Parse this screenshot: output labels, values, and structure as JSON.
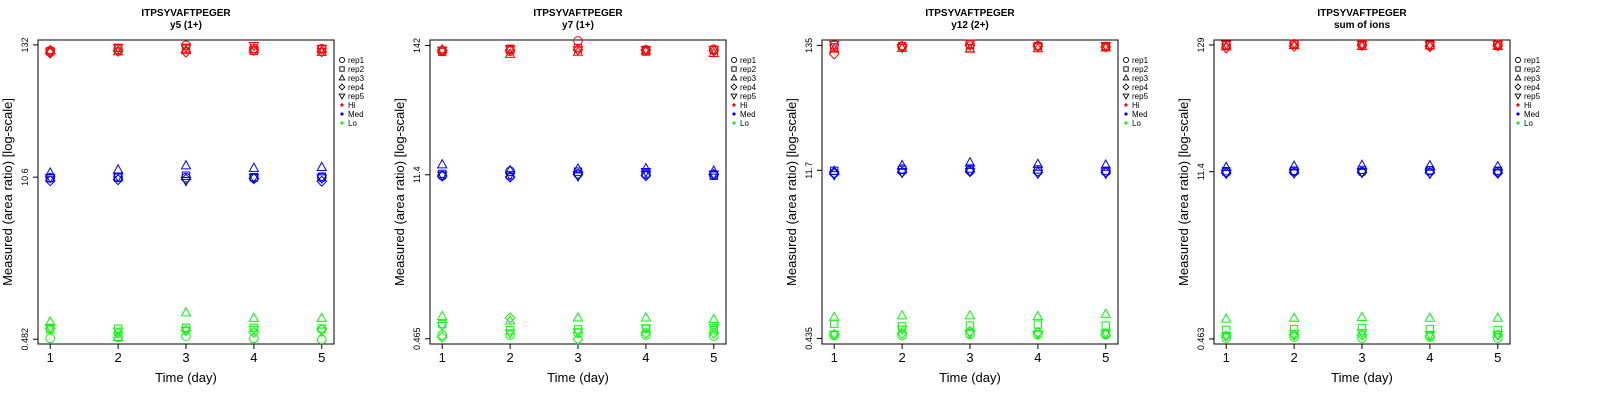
{
  "chart_data": [
    {
      "type": "scatter",
      "title": "ITPSYVAFTPEGER",
      "subtitle": "y5 (1+)",
      "xlabel": "Time (day)",
      "ylabel": "Measured (area ratio) [log-scale]",
      "x": [
        1,
        2,
        3,
        4,
        5
      ],
      "xlim": [
        0.82,
        5.18
      ],
      "ylim": [
        0.44,
        145
      ],
      "yscale": "log",
      "yticks": [
        0.482,
        10.6,
        132
      ],
      "ytick_labels": [
        "0.482",
        "10.6",
        "132"
      ],
      "legend_position": "right",
      "series": [
        {
          "name": "Hi",
          "color": "#ff0000",
          "reps": [
            [
              118,
              117,
              119,
              113,
              115
            ],
            [
              121,
              125,
              116,
              117,
              125
            ],
            [
              131,
              123,
              119,
              115,
              126
            ],
            [
              124,
              118,
              121,
              119,
              130
            ],
            [
              123,
              121,
              115,
              116,
              123
            ]
          ]
        },
        {
          "name": "Med",
          "color": "#0000ff",
          "reps": [
            [
              10.5,
              10.4,
              11.5,
              9.9,
              10.5
            ],
            [
              10.6,
              10.5,
              12.2,
              10.1,
              10.7
            ],
            [
              10.5,
              10.9,
              13.2,
              10.2,
              9.9
            ],
            [
              10.4,
              10.6,
              12.6,
              10.3,
              10.5
            ],
            [
              10.5,
              10.7,
              12.8,
              9.8,
              10.4
            ]
          ]
        },
        {
          "name": "Lo",
          "color": "#00ff00",
          "reps": [
            [
              0.49,
              0.58,
              0.67,
              0.59,
              0.6
            ],
            [
              0.5,
              0.59,
              0.5,
              0.54,
              0.56
            ],
            [
              0.51,
              0.6,
              0.8,
              0.57,
              0.57
            ],
            [
              0.49,
              0.6,
              0.72,
              0.55,
              0.58
            ],
            [
              0.48,
              0.59,
              0.72,
              0.58,
              0.56
            ]
          ]
        }
      ]
    },
    {
      "type": "scatter",
      "title": "ITPSYVAFTPEGER",
      "subtitle": "y7 (1+)",
      "xlabel": "Time (day)",
      "ylabel": "Measured (area ratio) [log-scale]",
      "x": [
        1,
        2,
        3,
        4,
        5
      ],
      "xlim": [
        0.82,
        5.18
      ],
      "ylim": [
        0.42,
        158
      ],
      "yscale": "log",
      "yticks": [
        0.465,
        11.4,
        142
      ],
      "ytick_labels": [
        "0.465",
        "11.4",
        "142"
      ],
      "legend_position": "right",
      "series": [
        {
          "name": "Hi",
          "color": "#ff0000",
          "reps": [
            [
              128,
              125,
              131,
              129,
              129
            ],
            [
              127,
              133,
              120,
              130,
              132
            ],
            [
              155,
              135,
              125,
              131,
              130
            ],
            [
              130,
              126,
              128,
              130,
              131
            ],
            [
              132,
              130,
              122,
              128,
              131
            ]
          ]
        },
        {
          "name": "Med",
          "color": "#0000ff",
          "reps": [
            [
              11.2,
              11.6,
              13.9,
              11.1,
              11.3
            ],
            [
              12.2,
              11.3,
              12.4,
              10.9,
              11.3
            ],
            [
              11.6,
              12.1,
              12.8,
              11.5,
              11.1
            ],
            [
              11.5,
              11.7,
              12.9,
              11.2,
              12.1
            ],
            [
              11.3,
              11.2,
              12.3,
              11.5,
              11.5
            ]
          ]
        },
        {
          "name": "Lo",
          "color": "#00ff00",
          "reps": [
            [
              0.5,
              0.62,
              0.72,
              0.48,
              0.6
            ],
            [
              0.5,
              0.55,
              0.66,
              0.7,
              0.52
            ],
            [
              0.52,
              0.56,
              0.7,
              0.46,
              0.53
            ],
            [
              0.5,
              0.57,
              0.7,
              0.52,
              0.57
            ],
            [
              0.49,
              0.55,
              0.68,
              0.52,
              0.58
            ]
          ]
        }
      ]
    },
    {
      "type": "scatter",
      "title": "ITPSYVAFTPEGER",
      "subtitle": "y12 (2+)",
      "xlabel": "Time (day)",
      "ylabel": "Measured (area ratio) [log-scale]",
      "x": [
        1,
        2,
        3,
        4,
        5
      ],
      "xlim": [
        0.82,
        5.18
      ],
      "ylim": [
        0.39,
        150
      ],
      "yscale": "log",
      "yticks": [
        0.435,
        11.7,
        135
      ],
      "ytick_labels": [
        "0.435",
        "11.7",
        "135"
      ],
      "legend_position": "right",
      "series": [
        {
          "name": "Hi",
          "color": "#ff0000",
          "reps": [
            [
              136,
              130,
              126,
              114,
              137
            ],
            [
              132,
              133,
              128,
              133,
              129
            ],
            [
              138,
              128,
              126,
              135,
              140
            ],
            [
              134,
              133,
              127,
              133,
              131
            ],
            [
              131,
              133,
              129,
              131,
              134
            ]
          ]
        },
        {
          "name": "Med",
          "color": "#0000ff",
          "reps": [
            [
              11.1,
              11.6,
              11.5,
              11.0,
              10.7
            ],
            [
              12.0,
              11.8,
              12.9,
              11.3,
              11.2
            ],
            [
              11.6,
              12.1,
              13.6,
              11.4,
              11.4
            ],
            [
              11.5,
              11.9,
              13.2,
              11.2,
              11.0
            ],
            [
              11.4,
              11.6,
              13.0,
              11.2,
              11.0
            ]
          ]
        },
        {
          "name": "Lo",
          "color": "#00ff00",
          "reps": [
            [
              0.46,
              0.58,
              0.66,
              0.47,
              0.47
            ],
            [
              0.46,
              0.55,
              0.68,
              0.48,
              0.52
            ],
            [
              0.47,
              0.56,
              0.68,
              0.5,
              0.48
            ],
            [
              0.47,
              0.57,
              0.67,
              0.49,
              0.47
            ],
            [
              0.47,
              0.56,
              0.7,
              0.47,
              0.48
            ]
          ]
        }
      ]
    },
    {
      "type": "scatter",
      "title": "ITPSYVAFTPEGER",
      "subtitle": "sum of ions",
      "xlabel": "Time (day)",
      "ylabel": "Measured (area ratio) [log-scale]",
      "x": [
        1,
        2,
        3,
        4,
        5
      ],
      "xlim": [
        0.82,
        5.18
      ],
      "ylim": [
        0.42,
        142
      ],
      "yscale": "log",
      "yticks": [
        0.463,
        11.4,
        129
      ],
      "ytick_labels": [
        "0.463",
        "11.4",
        "129"
      ],
      "legend_position": "right",
      "series": [
        {
          "name": "Hi",
          "color": "#ff0000",
          "reps": [
            [
              129,
              128,
              125,
              122,
              131
            ],
            [
              132,
              130,
              128,
              126,
              133
            ],
            [
              130,
              131,
              126,
              128,
              130
            ],
            [
              128,
              130,
              127,
              125,
              129
            ],
            [
              131,
              129,
              126,
              127,
              130
            ]
          ]
        },
        {
          "name": "Med",
          "color": "#0000ff",
          "reps": [
            [
              11.3,
              11.5,
              12.4,
              11.1,
              11.0
            ],
            [
              11.5,
              11.6,
              12.7,
              11.2,
              11.1
            ],
            [
              11.4,
              11.8,
              12.9,
              11.3,
              11.2
            ],
            [
              11.6,
              11.7,
              12.8,
              11.2,
              11.0
            ],
            [
              11.4,
              11.6,
              12.6,
              11.1,
              11.1
            ]
          ]
        },
        {
          "name": "Lo",
          "color": "#00ff00",
          "reps": [
            [
              0.47,
              0.55,
              0.68,
              0.49,
              0.49
            ],
            [
              0.48,
              0.56,
              0.69,
              0.5,
              0.51
            ],
            [
              0.47,
              0.57,
              0.7,
              0.5,
              0.52
            ],
            [
              0.48,
              0.56,
              0.69,
              0.49,
              0.5
            ],
            [
              0.47,
              0.55,
              0.69,
              0.5,
              0.5
            ]
          ]
        }
      ]
    }
  ],
  "legend": {
    "entries": [
      {
        "label": "rep1",
        "marker": "circle"
      },
      {
        "label": "rep2",
        "marker": "square"
      },
      {
        "label": "rep3",
        "marker": "triangle-up"
      },
      {
        "label": "rep4",
        "marker": "diamond"
      },
      {
        "label": "rep5",
        "marker": "triangle-down"
      },
      {
        "label": "Hi",
        "marker": "dot",
        "color": "#ff0000"
      },
      {
        "label": "Med",
        "marker": "dot",
        "color": "#0000ff"
      },
      {
        "label": "Lo",
        "marker": "dot",
        "color": "#00ff00"
      }
    ]
  }
}
